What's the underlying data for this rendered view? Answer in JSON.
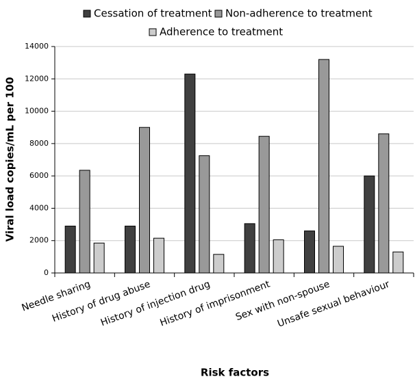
{
  "chart_data": {
    "type": "bar",
    "categories": [
      "Needle sharing",
      "History of drug abuse",
      "History of injection drug",
      "History of imprisonment",
      "Sex with non-spouse",
      "Unsafe sexual behaviour"
    ],
    "series": [
      {
        "name": "Cessation of treatment",
        "color": "#404040",
        "values": [
          2900,
          2900,
          12300,
          3050,
          2600,
          6000
        ]
      },
      {
        "name": "Non-adherence to treatment",
        "color": "#999999",
        "values": [
          6350,
          9000,
          7250,
          8450,
          13200,
          8600
        ]
      },
      {
        "name": "Adherence to treatment",
        "color": "#cccccc",
        "values": [
          1850,
          2150,
          1150,
          2050,
          1650,
          1300
        ]
      }
    ],
    "ylim": [
      0,
      14000
    ],
    "yticks": [
      0,
      2000,
      4000,
      6000,
      8000,
      10000,
      12000,
      14000
    ],
    "y_label": "Viral load copies/mL per 100",
    "x_label": "Risk factors",
    "grid": true
  }
}
